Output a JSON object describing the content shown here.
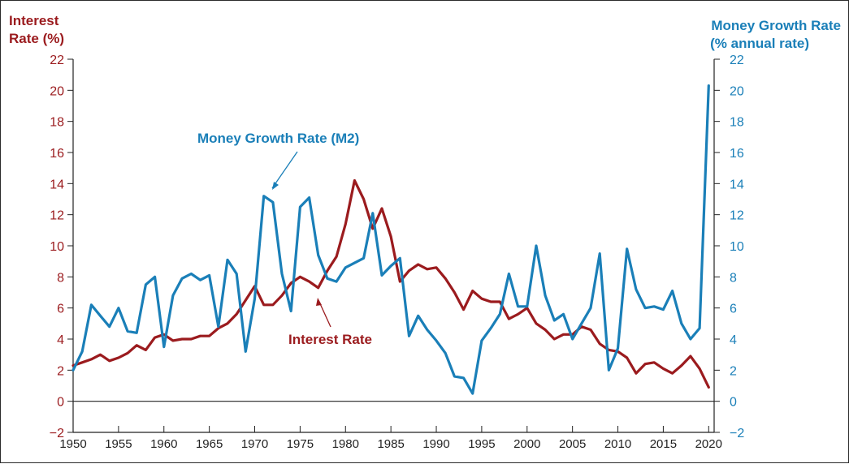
{
  "chart_data": {
    "type": "line",
    "y_left_label_lines": [
      "Interest",
      "Rate (%)"
    ],
    "y_right_label_lines": [
      "Money Growth Rate",
      "(% annual rate)"
    ],
    "xlim": [
      1950,
      2021
    ],
    "ylim": [
      -2,
      22
    ],
    "x_ticks": [
      "1950",
      "1955",
      "1960",
      "1965",
      "1970",
      "1975",
      "1980",
      "1985",
      "1990",
      "1995",
      "2000",
      "2005",
      "2010",
      "2015",
      "2020"
    ],
    "y_ticks": [
      "−2",
      "0",
      "2",
      "4",
      "6",
      "8",
      "10",
      "12",
      "14",
      "16",
      "18",
      "20",
      "22"
    ],
    "annotations": {
      "money": "Money Growth Rate (M2)",
      "interest": "Interest Rate"
    },
    "colors": {
      "interest": "#9b1b1e",
      "money": "#1a7fb8",
      "axis": "#222222"
    },
    "series": [
      {
        "key": "interest",
        "values": [
          [
            1950,
            2.3
          ],
          [
            1951,
            2.5
          ],
          [
            1952,
            2.7
          ],
          [
            1953,
            3.0
          ],
          [
            1954,
            2.6
          ],
          [
            1955,
            2.8
          ],
          [
            1956,
            3.1
          ],
          [
            1957,
            3.6
          ],
          [
            1958,
            3.3
          ],
          [
            1959,
            4.1
          ],
          [
            1960,
            4.3
          ],
          [
            1961,
            3.9
          ],
          [
            1962,
            4.0
          ],
          [
            1963,
            4.0
          ],
          [
            1964,
            4.2
          ],
          [
            1965,
            4.2
          ],
          [
            1966,
            4.7
          ],
          [
            1967,
            5.0
          ],
          [
            1968,
            5.6
          ],
          [
            1969,
            6.5
          ],
          [
            1970,
            7.4
          ],
          [
            1971,
            6.2
          ],
          [
            1972,
            6.2
          ],
          [
            1973,
            6.8
          ],
          [
            1974,
            7.6
          ],
          [
            1975,
            8.0
          ],
          [
            1976,
            7.7
          ],
          [
            1977,
            7.3
          ],
          [
            1978,
            8.4
          ],
          [
            1979,
            9.3
          ],
          [
            1980,
            11.4
          ],
          [
            1981,
            14.2
          ],
          [
            1982,
            13.0
          ],
          [
            1983,
            11.1
          ],
          [
            1984,
            12.4
          ],
          [
            1985,
            10.6
          ],
          [
            1986,
            7.7
          ],
          [
            1987,
            8.4
          ],
          [
            1988,
            8.8
          ],
          [
            1989,
            8.5
          ],
          [
            1990,
            8.6
          ],
          [
            1991,
            7.9
          ],
          [
            1992,
            7.0
          ],
          [
            1993,
            5.9
          ],
          [
            1994,
            7.1
          ],
          [
            1995,
            6.6
          ],
          [
            1996,
            6.4
          ],
          [
            1997,
            6.4
          ],
          [
            1998,
            5.3
          ],
          [
            1999,
            5.6
          ],
          [
            2000,
            6.0
          ],
          [
            2001,
            5.0
          ],
          [
            2002,
            4.6
          ],
          [
            2003,
            4.0
          ],
          [
            2004,
            4.3
          ],
          [
            2005,
            4.3
          ],
          [
            2006,
            4.8
          ],
          [
            2007,
            4.6
          ],
          [
            2008,
            3.7
          ],
          [
            2009,
            3.3
          ],
          [
            2010,
            3.2
          ],
          [
            2011,
            2.8
          ],
          [
            2012,
            1.8
          ],
          [
            2013,
            2.4
          ],
          [
            2014,
            2.5
          ],
          [
            2015,
            2.1
          ],
          [
            2016,
            1.8
          ],
          [
            2017,
            2.3
          ],
          [
            2018,
            2.9
          ],
          [
            2019,
            2.1
          ],
          [
            2020,
            0.9
          ]
        ]
      },
      {
        "key": "money",
        "values": [
          [
            1950,
            2.0
          ],
          [
            1951,
            3.2
          ],
          [
            1952,
            6.2
          ],
          [
            1953,
            5.5
          ],
          [
            1954,
            4.8
          ],
          [
            1955,
            6.0
          ],
          [
            1956,
            4.5
          ],
          [
            1957,
            4.4
          ],
          [
            1958,
            7.5
          ],
          [
            1959,
            8.0
          ],
          [
            1960,
            3.5
          ],
          [
            1961,
            6.8
          ],
          [
            1962,
            7.9
          ],
          [
            1963,
            8.2
          ],
          [
            1964,
            7.8
          ],
          [
            1965,
            8.1
          ],
          [
            1966,
            4.8
          ],
          [
            1967,
            9.1
          ],
          [
            1968,
            8.2
          ],
          [
            1969,
            3.2
          ],
          [
            1970,
            6.6
          ],
          [
            1971,
            13.2
          ],
          [
            1972,
            12.8
          ],
          [
            1973,
            8.2
          ],
          [
            1974,
            5.8
          ],
          [
            1975,
            12.5
          ],
          [
            1976,
            13.1
          ],
          [
            1977,
            9.4
          ],
          [
            1978,
            7.9
          ],
          [
            1979,
            7.7
          ],
          [
            1980,
            8.6
          ],
          [
            1981,
            8.9
          ],
          [
            1982,
            9.2
          ],
          [
            1983,
            12.1
          ],
          [
            1984,
            8.1
          ],
          [
            1985,
            8.7
          ],
          [
            1986,
            9.2
          ],
          [
            1987,
            4.2
          ],
          [
            1988,
            5.5
          ],
          [
            1989,
            4.6
          ],
          [
            1990,
            3.9
          ],
          [
            1991,
            3.1
          ],
          [
            1992,
            1.6
          ],
          [
            1993,
            1.5
          ],
          [
            1994,
            0.5
          ],
          [
            1995,
            3.9
          ],
          [
            1996,
            4.7
          ],
          [
            1997,
            5.6
          ],
          [
            1998,
            8.2
          ],
          [
            1999,
            6.1
          ],
          [
            2000,
            6.1
          ],
          [
            2001,
            10.0
          ],
          [
            2002,
            6.8
          ],
          [
            2003,
            5.2
          ],
          [
            2004,
            5.6
          ],
          [
            2005,
            4.0
          ],
          [
            2006,
            5.0
          ],
          [
            2007,
            6.0
          ],
          [
            2008,
            9.5
          ],
          [
            2009,
            2.0
          ],
          [
            2010,
            3.4
          ],
          [
            2011,
            9.8
          ],
          [
            2012,
            7.2
          ],
          [
            2013,
            6.0
          ],
          [
            2014,
            6.1
          ],
          [
            2015,
            5.9
          ],
          [
            2016,
            7.1
          ],
          [
            2017,
            5.0
          ],
          [
            2018,
            4.0
          ],
          [
            2019,
            4.7
          ],
          [
            2020,
            20.3
          ]
        ]
      }
    ]
  }
}
